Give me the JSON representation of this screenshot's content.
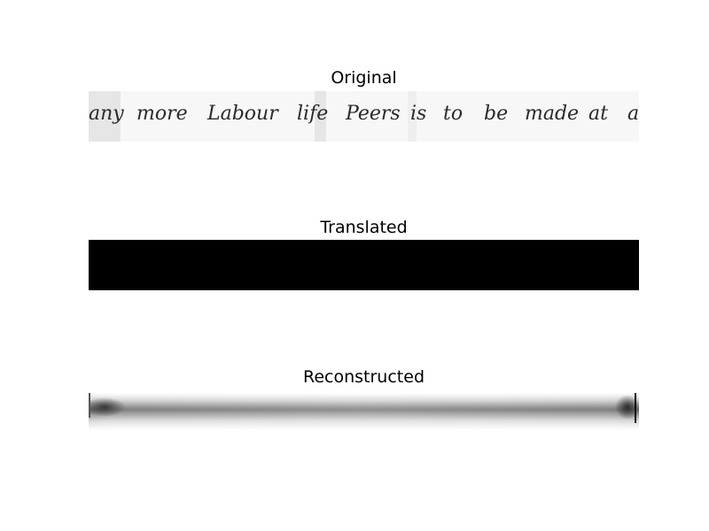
{
  "panels": {
    "original": {
      "title": "Original"
    },
    "translated": {
      "title": "Translated"
    },
    "reconstructed": {
      "title": "Reconstructed"
    }
  },
  "original_text_words": [
    "any",
    "more",
    "Labour",
    "life",
    "Peers",
    "is",
    "to",
    "be",
    "made",
    "at",
    "a"
  ],
  "colors": {
    "background": "#ffffff",
    "translated_fill": "#000000",
    "ink": "#2a2a2a"
  }
}
